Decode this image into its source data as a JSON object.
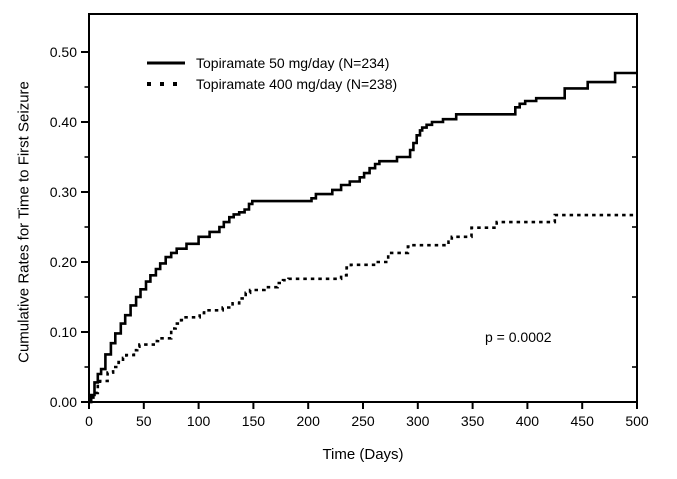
{
  "figure": {
    "background": "#ffffff",
    "line_color": "#000000"
  },
  "chart_data": {
    "type": "line",
    "subtype": "kaplan-meier-step",
    "title": "",
    "xlabel": "Time (Days)",
    "ylabel": "Cumulative Rates for Time to First Seizure",
    "xlim": [
      0,
      500
    ],
    "ylim": [
      0,
      0.52
    ],
    "x_ticks": [
      0,
      50,
      100,
      150,
      200,
      250,
      300,
      350,
      400,
      450,
      500
    ],
    "y_ticks": [
      0,
      0.1,
      0.2,
      0.3,
      0.4,
      0.5
    ],
    "y_tick_labels": [
      "0.00",
      "0.10",
      "0.20",
      "0.30",
      "0.40",
      "0.50"
    ],
    "y_minor_ticks": [
      0.05,
      0.15,
      0.25,
      0.35,
      0.45
    ],
    "grid": false,
    "legend_position": "top-left",
    "annotation": {
      "text": "p = 0.0002",
      "x": 398,
      "y": 0.093
    },
    "series": [
      {
        "name": "Topiramate 50 mg/day (N=234)",
        "line_style": "solid",
        "color": "#000000",
        "points": [
          [
            0,
            0
          ],
          [
            2,
            0.01
          ],
          [
            5,
            0.028
          ],
          [
            8,
            0.04
          ],
          [
            11,
            0.047
          ],
          [
            15,
            0.068
          ],
          [
            20,
            0.084
          ],
          [
            24,
            0.098
          ],
          [
            29,
            0.112
          ],
          [
            33,
            0.124
          ],
          [
            38,
            0.138
          ],
          [
            43,
            0.15
          ],
          [
            47,
            0.161
          ],
          [
            52,
            0.172
          ],
          [
            56,
            0.181
          ],
          [
            61,
            0.19
          ],
          [
            65,
            0.198
          ],
          [
            70,
            0.207
          ],
          [
            75,
            0.213
          ],
          [
            80,
            0.219
          ],
          [
            89,
            0.226
          ],
          [
            100,
            0.236
          ],
          [
            110,
            0.243
          ],
          [
            119,
            0.25
          ],
          [
            123,
            0.257
          ],
          [
            128,
            0.264
          ],
          [
            132,
            0.268
          ],
          [
            137,
            0.271
          ],
          [
            142,
            0.275
          ],
          [
            146,
            0.283
          ],
          [
            149,
            0.287
          ],
          [
            203,
            0.291
          ],
          [
            207,
            0.297
          ],
          [
            222,
            0.303
          ],
          [
            230,
            0.31
          ],
          [
            238,
            0.315
          ],
          [
            247,
            0.321
          ],
          [
            251,
            0.327
          ],
          [
            256,
            0.334
          ],
          [
            261,
            0.34
          ],
          [
            265,
            0.344
          ],
          [
            281,
            0.35
          ],
          [
            293,
            0.36
          ],
          [
            296,
            0.37
          ],
          [
            299,
            0.381
          ],
          [
            302,
            0.388
          ],
          [
            304,
            0.392
          ],
          [
            308,
            0.396
          ],
          [
            313,
            0.4
          ],
          [
            323,
            0.404
          ],
          [
            335,
            0.411
          ],
          [
            389,
            0.421
          ],
          [
            393,
            0.426
          ],
          [
            398,
            0.43
          ],
          [
            408,
            0.434
          ],
          [
            434,
            0.448
          ],
          [
            455,
            0.457
          ],
          [
            480,
            0.47
          ],
          [
            500,
            0.47
          ]
        ]
      },
      {
        "name": "Topiramate 400 mg/day (N=238)",
        "line_style": "dotted",
        "color": "#000000",
        "points": [
          [
            0,
            0
          ],
          [
            4,
            0.013
          ],
          [
            8,
            0.026
          ],
          [
            10,
            0.03
          ],
          [
            17,
            0.042
          ],
          [
            22,
            0.05
          ],
          [
            27,
            0.057
          ],
          [
            31,
            0.063
          ],
          [
            34,
            0.067
          ],
          [
            41,
            0.074
          ],
          [
            44,
            0.079
          ],
          [
            46,
            0.082
          ],
          [
            59,
            0.087
          ],
          [
            63,
            0.091
          ],
          [
            75,
            0.105
          ],
          [
            79,
            0.112
          ],
          [
            84,
            0.117
          ],
          [
            86,
            0.121
          ],
          [
            101,
            0.127
          ],
          [
            105,
            0.131
          ],
          [
            122,
            0.135
          ],
          [
            131,
            0.141
          ],
          [
            137,
            0.148
          ],
          [
            143,
            0.156
          ],
          [
            147,
            0.16
          ],
          [
            160,
            0.164
          ],
          [
            172,
            0.17
          ],
          [
            177,
            0.174
          ],
          [
            182,
            0.176
          ],
          [
            230,
            0.181
          ],
          [
            235,
            0.192
          ],
          [
            239,
            0.196
          ],
          [
            262,
            0.2
          ],
          [
            273,
            0.213
          ],
          [
            291,
            0.222
          ],
          [
            294,
            0.224
          ],
          [
            328,
            0.229
          ],
          [
            331,
            0.236
          ],
          [
            349,
            0.249
          ],
          [
            372,
            0.257
          ],
          [
            425,
            0.267
          ],
          [
            500,
            0.267
          ]
        ]
      }
    ]
  }
}
